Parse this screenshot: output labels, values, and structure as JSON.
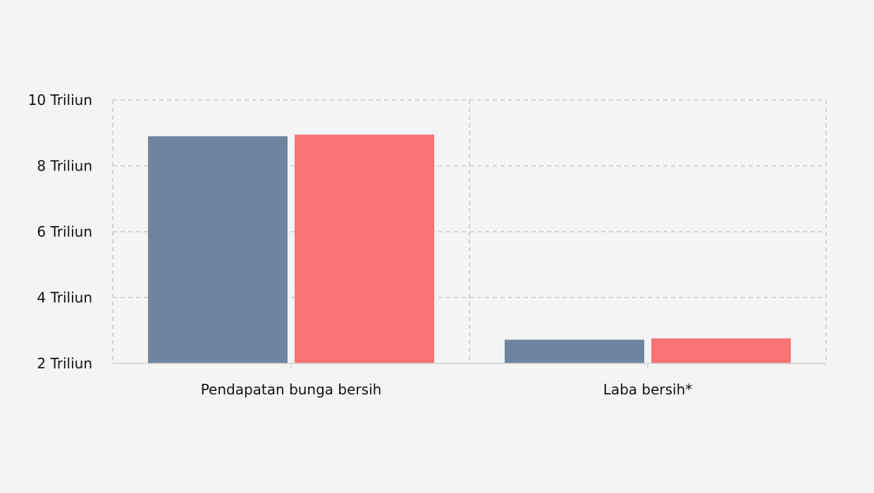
{
  "chart_data": {
    "type": "bar",
    "categories": [
      "Pendapatan bunga bersih",
      "Laba bersih*"
    ],
    "series": [
      {
        "values": [
          8.9,
          2.72
        ],
        "color": "#6e84a1"
      },
      {
        "values": [
          8.95,
          2.76
        ],
        "color": "#f87475"
      }
    ],
    "ylim": [
      2,
      10
    ],
    "yticks": [
      2,
      4,
      6,
      8,
      10
    ],
    "ytick_labels": [
      "2 Triliun",
      "4 Triliun",
      "6 Triliun",
      "8 Triliun",
      "10 Triliun"
    ],
    "xlabel": "",
    "ylabel": "",
    "title": "",
    "grid": true,
    "grid_style": "dashed"
  }
}
